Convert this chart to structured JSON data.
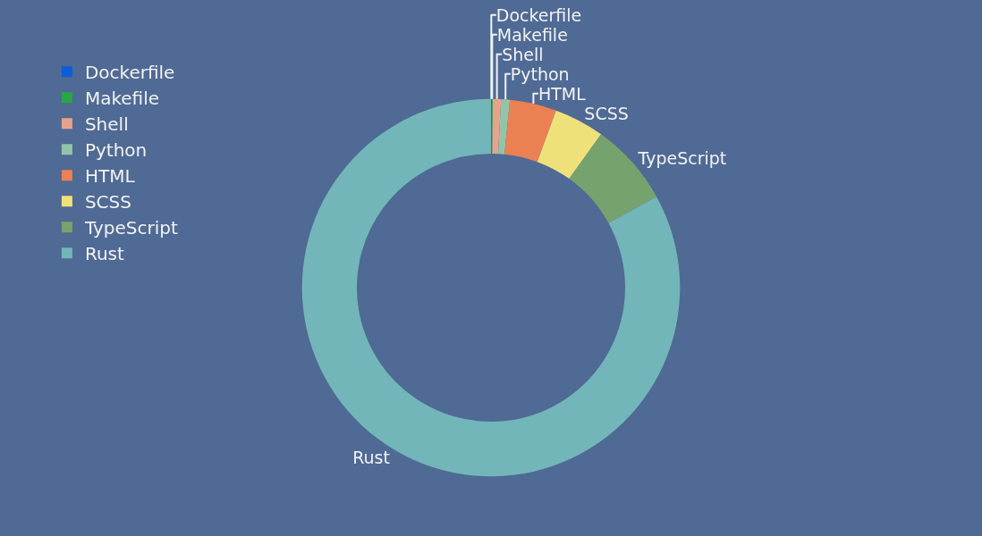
{
  "chart_data": {
    "type": "donut",
    "categories": [
      "Dockerfile",
      "Makefile",
      "Shell",
      "Python",
      "HTML",
      "SCSS",
      "TypeScript",
      "Rust"
    ],
    "values": [
      0.05,
      0.1,
      0.7,
      0.75,
      4.0,
      4.3,
      7.1,
      83.0
    ],
    "colors": [
      "#0b5ed7",
      "#28a745",
      "#e9a18b",
      "#93c4a8",
      "#eb8153",
      "#efe17a",
      "#76a36d",
      "#72b6b9"
    ],
    "legend": "top left"
  }
}
